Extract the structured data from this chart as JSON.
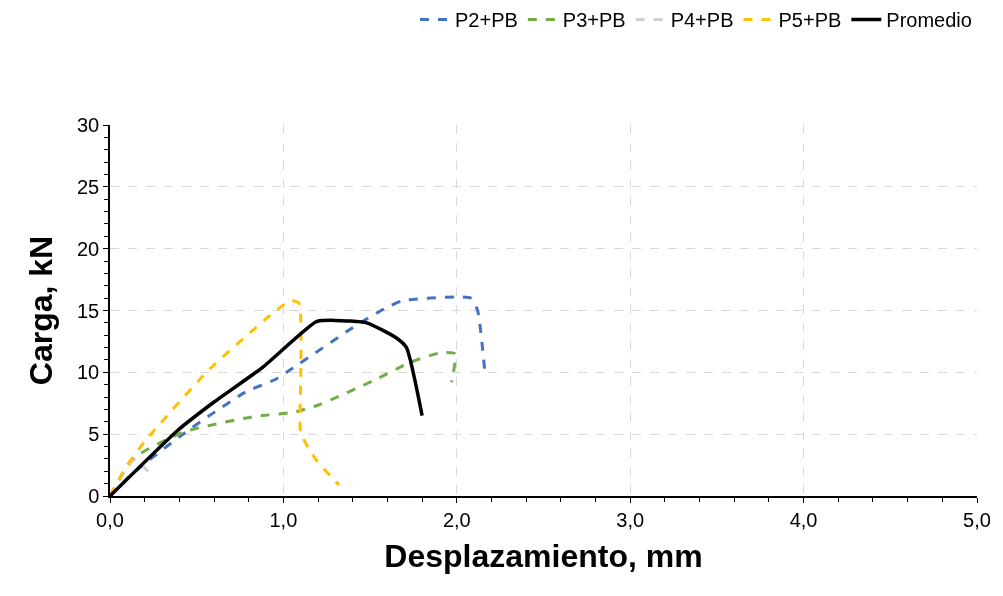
{
  "chart_data": {
    "type": "line",
    "xlabel": "Desplazamiento, mm",
    "ylabel": "Carga, kN",
    "xlim": [
      0,
      5
    ],
    "ylim": [
      0,
      30
    ],
    "xticks": [
      {
        "value": 0,
        "label": "0,0"
      },
      {
        "value": 1,
        "label": "1,0"
      },
      {
        "value": 2,
        "label": "2,0"
      },
      {
        "value": 3,
        "label": "3,0"
      },
      {
        "value": 4,
        "label": "4,0"
      },
      {
        "value": 5,
        "label": "5,0"
      }
    ],
    "yticks": [
      0,
      5,
      10,
      15,
      20,
      25,
      30
    ],
    "grid": true,
    "legend": "top",
    "line_style": "dashed",
    "series": [
      {
        "name": "P2+PB",
        "color": "#4472c4",
        "x": [
          0,
          0.12,
          0.43,
          0.78,
          0.95,
          1.05,
          1.42,
          1.59,
          1.69,
          2.08,
          2.12,
          2.16
        ],
        "values": [
          0,
          1.7,
          5.1,
          8.4,
          9.4,
          10.3,
          13.8,
          15.2,
          15.8,
          16.0,
          15.0,
          10.3
        ]
      },
      {
        "name": "P3+PB",
        "color": "#70ad47",
        "x": [
          0,
          0.14,
          0.43,
          0.82,
          1.07,
          1.21,
          1.53,
          1.73,
          1.91,
          1.99,
          1.97
        ],
        "values": [
          0,
          3.1,
          5.2,
          6.4,
          6.8,
          7.4,
          9.4,
          10.8,
          11.6,
          11.5,
          9.2
        ]
      },
      {
        "name": "P4+PB",
        "color": "#d0d0d0",
        "x": [
          0,
          0.14,
          0.22
        ],
        "values": [
          0,
          2.9,
          2.0
        ]
      },
      {
        "name": "P5+PB",
        "color": "#ffc000",
        "x": [
          0,
          0.09,
          0.2,
          0.57,
          0.94,
          1.04,
          1.09,
          1.1,
          1.1,
          1.19,
          1.32
        ],
        "values": [
          0,
          2.3,
          4.4,
          10.2,
          14.8,
          15.8,
          15.6,
          9.4,
          5.1,
          2.9,
          0.9
        ]
      },
      {
        "name": "Promedio",
        "color": "#000000",
        "line_style": "solid",
        "x": [
          0,
          0.39,
          0.6,
          0.88,
          1.19,
          1.3,
          1.48,
          1.65,
          1.71,
          1.8
        ],
        "values": [
          0,
          5.3,
          7.6,
          10.4,
          14.1,
          14.2,
          14.0,
          12.8,
          12.0,
          6.5
        ]
      }
    ]
  }
}
